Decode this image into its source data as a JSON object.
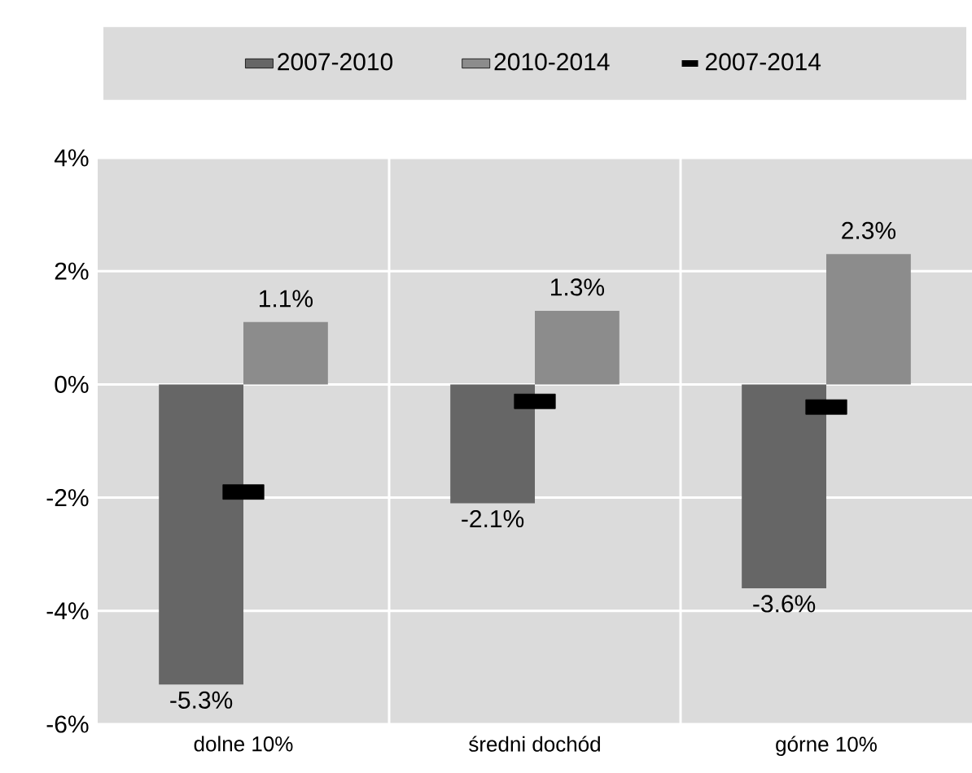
{
  "chart_data": {
    "type": "bar",
    "categories": [
      "dolne 10%",
      "średni dochód",
      "górne 10%"
    ],
    "series": [
      {
        "name": "2007-2010",
        "color": "#666666",
        "values": [
          -5.3,
          -2.1,
          -3.6
        ],
        "value_labels": [
          "-5.3%",
          "-2.1%",
          "-3.6%"
        ]
      },
      {
        "name": "2010-2014",
        "color": "#8c8c8c",
        "values": [
          1.1,
          1.3,
          2.3
        ],
        "value_labels": [
          "1.1%",
          "1.3%",
          "2.3%"
        ]
      },
      {
        "name": "2007-2014",
        "type": "scatter",
        "color": "#000000",
        "values": [
          -1.9,
          -0.3,
          -0.4
        ]
      }
    ],
    "ylim": [
      -6,
      4
    ],
    "yticks": [
      {
        "value": -6,
        "label": "-6%"
      },
      {
        "value": -4,
        "label": "-4%"
      },
      {
        "value": -2,
        "label": "-2%"
      },
      {
        "value": 0,
        "label": "0%"
      },
      {
        "value": 2,
        "label": "2%"
      },
      {
        "value": 4,
        "label": "4%"
      }
    ],
    "grid": true,
    "legend": "top",
    "marker": "square"
  }
}
